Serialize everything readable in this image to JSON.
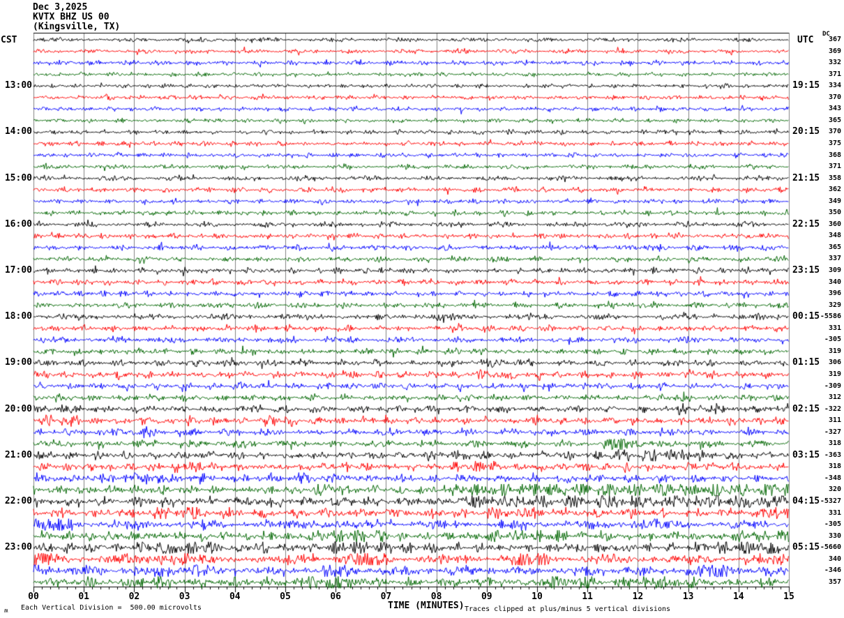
{
  "header": {
    "date": "Dec 3,2025",
    "station_line": "KVTX BHZ US 00",
    "site_line": "(Kingsville, TX)"
  },
  "left_axis": {
    "timezone": "CST",
    "labels": [
      {
        "row": 4,
        "text": "13:00"
      },
      {
        "row": 8,
        "text": "14:00"
      },
      {
        "row": 12,
        "text": "15:00"
      },
      {
        "row": 16,
        "text": "16:00"
      },
      {
        "row": 20,
        "text": "17:00"
      },
      {
        "row": 24,
        "text": "18:00"
      },
      {
        "row": 28,
        "text": "19:00"
      },
      {
        "row": 32,
        "text": "20:00"
      },
      {
        "row": 36,
        "text": "21:00"
      },
      {
        "row": 40,
        "text": "22:00"
      },
      {
        "row": 44,
        "text": "23:00"
      }
    ]
  },
  "right_axis": {
    "timezone": "UTC",
    "dc_label": "DC",
    "labels": [
      {
        "row": 4,
        "text": "19:15"
      },
      {
        "row": 8,
        "text": "20:15"
      },
      {
        "row": 12,
        "text": "21:15"
      },
      {
        "row": 16,
        "text": "22:15"
      },
      {
        "row": 20,
        "text": "23:15"
      },
      {
        "row": 24,
        "text": "00:15"
      },
      {
        "row": 28,
        "text": "01:15"
      },
      {
        "row": 32,
        "text": "02:15"
      },
      {
        "row": 36,
        "text": "03:15"
      },
      {
        "row": 40,
        "text": "04:15"
      },
      {
        "row": 44,
        "text": "05:15"
      }
    ]
  },
  "x_axis": {
    "tick_labels": [
      "00",
      "01",
      "02",
      "03",
      "04",
      "05",
      "06",
      "07",
      "08",
      "09",
      "10",
      "11",
      "12",
      "13",
      "14",
      "15"
    ],
    "title": "TIME (MINUTES)"
  },
  "footer": {
    "corner_glyph": "ʍ",
    "scale_note": "Each Vertical Division =  500.00 microvolts",
    "clip_note": "Traces clipped at plus/minus 5 vertical divisions"
  },
  "colors": {
    "trace_cycle": [
      "#000000",
      "#ff0000",
      "#0000ff",
      "#006600"
    ],
    "grid": "#808080",
    "frame": "#000000"
  },
  "chart_data": {
    "type": "line",
    "kind": "seismogram-helicorder",
    "station": "KVTX",
    "channel": "BHZ",
    "network": "US",
    "location": "00",
    "site": "Kingsville, TX",
    "date": "Dec 3,2025",
    "timezone_left": "CST",
    "timezone_right": "UTC",
    "minutes_per_row": 15,
    "rows_count": 48,
    "x_range_minutes": [
      0,
      15
    ],
    "first_row_start_cst": "12:00",
    "row_colors_cycle": [
      "black",
      "red",
      "blue",
      "green"
    ],
    "vertical_division_microvolts": 500.0,
    "clip_divisions": 5,
    "dc_offsets": [
      367,
      369,
      332,
      371,
      334,
      370,
      343,
      365,
      370,
      375,
      368,
      371,
      358,
      362,
      349,
      350,
      360,
      348,
      365,
      337,
      309,
      340,
      396,
      329,
      -5586,
      331,
      -305,
      319,
      306,
      319,
      -309,
      312,
      -322,
      311,
      -327,
      318,
      -363,
      318,
      -348,
      320,
      -5327,
      331,
      -305,
      330,
      -5660,
      340,
      -346,
      357
    ],
    "rows": [
      {
        "amp": 2.4,
        "bursts": []
      },
      {
        "amp": 2.6,
        "bursts": []
      },
      {
        "amp": 2.8,
        "bursts": []
      },
      {
        "amp": 2.4,
        "bursts": []
      },
      {
        "amp": 2.4,
        "bursts": []
      },
      {
        "amp": 2.6,
        "bursts": []
      },
      {
        "amp": 2.6,
        "bursts": []
      },
      {
        "amp": 2.4,
        "bursts": []
      },
      {
        "amp": 2.6,
        "bursts": []
      },
      {
        "amp": 2.8,
        "bursts": []
      },
      {
        "amp": 2.6,
        "bursts": []
      },
      {
        "amp": 2.6,
        "bursts": []
      },
      {
        "amp": 2.8,
        "bursts": []
      },
      {
        "amp": 3.0,
        "bursts": []
      },
      {
        "amp": 2.8,
        "bursts": []
      },
      {
        "amp": 2.8,
        "bursts": []
      },
      {
        "amp": 3.0,
        "bursts": []
      },
      {
        "amp": 3.2,
        "bursts": []
      },
      {
        "amp": 3.2,
        "bursts": [
          [
            11.8,
            12.5,
            1.5
          ]
        ]
      },
      {
        "amp": 3.0,
        "bursts": []
      },
      {
        "amp": 3.2,
        "bursts": []
      },
      {
        "amp": 3.4,
        "bursts": []
      },
      {
        "amp": 3.2,
        "bursts": []
      },
      {
        "amp": 3.2,
        "bursts": []
      },
      {
        "amp": 3.4,
        "bursts": [
          [
            7.5,
            8.3,
            1.6
          ]
        ]
      },
      {
        "amp": 3.6,
        "bursts": []
      },
      {
        "amp": 3.4,
        "bursts": []
      },
      {
        "amp": 3.4,
        "bursts": []
      },
      {
        "amp": 3.6,
        "bursts": [
          [
            9.0,
            9.7,
            1.5
          ]
        ]
      },
      {
        "amp": 3.8,
        "bursts": [
          [
            8.8,
            9.6,
            1.6
          ],
          [
            13.0,
            13.5,
            1.5
          ]
        ]
      },
      {
        "amp": 3.8,
        "bursts": []
      },
      {
        "amp": 3.6,
        "bursts": [
          [
            12.4,
            13.1,
            1.5
          ]
        ]
      },
      {
        "amp": 4.0,
        "bursts": [
          [
            0.2,
            1.0,
            1.6
          ],
          [
            12.8,
            13.6,
            1.6
          ]
        ]
      },
      {
        "amp": 4.2,
        "bursts": [
          [
            0.1,
            0.9,
            1.9
          ],
          [
            4.6,
            5.3,
            1.7
          ]
        ]
      },
      {
        "amp": 4.0,
        "bursts": [
          [
            1.6,
            2.4,
            1.7
          ],
          [
            12.2,
            12.8,
            1.6
          ]
        ]
      },
      {
        "amp": 4.0,
        "bursts": [
          [
            11.3,
            12.1,
            1.8
          ]
        ]
      },
      {
        "amp": 4.4,
        "bursts": [
          [
            7.9,
            8.6,
            1.5
          ],
          [
            11.4,
            13.3,
            1.9
          ]
        ]
      },
      {
        "amp": 4.6,
        "bursts": [
          [
            2.8,
            3.6,
            1.7
          ],
          [
            8.3,
            9.2,
            1.6
          ]
        ]
      },
      {
        "amp": 4.6,
        "bursts": [
          [
            1.7,
            2.6,
            1.9
          ],
          [
            5.2,
            5.9,
            1.5
          ]
        ]
      },
      {
        "amp": 5.0,
        "bursts": [
          [
            5.6,
            6.4,
            1.6
          ],
          [
            8.0,
            15.0,
            1.9
          ]
        ]
      },
      {
        "amp": 5.0,
        "bursts": [
          [
            4.2,
            5.0,
            1.5
          ],
          [
            8.4,
            15.0,
            1.8
          ]
        ]
      },
      {
        "amp": 5.2,
        "bursts": [
          [
            2.4,
            3.3,
            2.0
          ],
          [
            9.0,
            10.0,
            1.5
          ],
          [
            14.4,
            15.0,
            2.2
          ]
        ]
      },
      {
        "amp": 5.0,
        "bursts": [
          [
            0.0,
            0.8,
            1.9
          ],
          [
            5.4,
            6.1,
            1.7
          ],
          [
            11.7,
            12.4,
            2.0
          ]
        ]
      },
      {
        "amp": 5.2,
        "bursts": [
          [
            5.4,
            7.1,
            1.8
          ],
          [
            9.0,
            10.6,
            1.7
          ],
          [
            13.7,
            15.0,
            1.6
          ]
        ]
      },
      {
        "amp": 5.4,
        "bursts": [
          [
            1.9,
            3.6,
            2.0
          ],
          [
            5.9,
            7.6,
            1.7
          ],
          [
            13.4,
            15.0,
            1.9
          ]
        ]
      },
      {
        "amp": 5.6,
        "bursts": [
          [
            0.0,
            0.6,
            1.8
          ],
          [
            2.4,
            3.1,
            2.2
          ],
          [
            5.9,
            7.1,
            1.9
          ],
          [
            9.4,
            10.1,
            1.7
          ]
        ]
      },
      {
        "amp": 5.4,
        "bursts": [
          [
            0.0,
            0.7,
            1.6
          ],
          [
            2.4,
            3.3,
            2.1
          ],
          [
            5.7,
            6.4,
            1.7
          ],
          [
            12.9,
            14.1,
            1.9
          ]
        ]
      },
      {
        "amp": 5.4,
        "bursts": [
          [
            2.0,
            2.8,
            1.5
          ],
          [
            5.4,
            6.6,
            1.9
          ],
          [
            9.9,
            11.1,
            1.7
          ],
          [
            12.0,
            13.1,
            1.6
          ]
        ]
      }
    ]
  }
}
